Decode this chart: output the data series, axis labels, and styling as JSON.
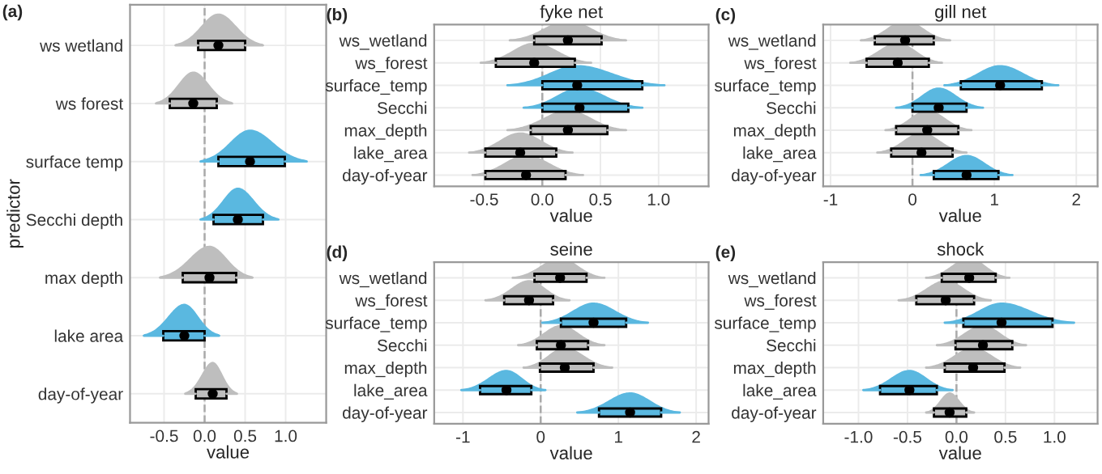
{
  "chart_data": [
    {
      "type": "box",
      "orientation": "horizontal",
      "annotations": [
        "(a)"
      ],
      "xlabel": "value",
      "ylabel": "predictor",
      "grid": true,
      "categories": [
        "ws wetland",
        "ws forest",
        "surface temp",
        "Secchi depth",
        "max depth",
        "lake area",
        "day-of-year"
      ],
      "colors": [
        "#bebebe",
        "#bebebe",
        "#5ab8e0",
        "#5ab8e0",
        "#bebebe",
        "#5ab8e0",
        "#bebebe"
      ],
      "boxes": [
        {
          "low": -0.36,
          "q1": -0.08,
          "median": 0.17,
          "q3": 0.5,
          "high": 0.72
        },
        {
          "low": -0.6,
          "q1": -0.43,
          "median": -0.14,
          "q3": 0.15,
          "high": 0.34
        },
        {
          "low": -0.05,
          "q1": 0.17,
          "median": 0.56,
          "q3": 0.99,
          "high": 1.26
        },
        {
          "low": -0.05,
          "q1": 0.11,
          "median": 0.41,
          "q3": 0.72,
          "high": 0.91
        },
        {
          "low": -0.55,
          "q1": -0.27,
          "median": 0.06,
          "q3": 0.39,
          "high": 0.59
        },
        {
          "low": -0.75,
          "q1": -0.51,
          "median": -0.25,
          "q3": 0.0,
          "high": 0.18
        },
        {
          "low": -0.24,
          "q1": -0.11,
          "median": 0.1,
          "q3": 0.27,
          "high": 0.4
        }
      ],
      "xlim": [
        -0.92,
        1.5
      ],
      "xticks": [
        {
          "value": -0.5,
          "label": "-0.5"
        },
        {
          "value": 0,
          "label": "0.0"
        },
        {
          "value": 0.5,
          "label": "0.5"
        },
        {
          "value": 1,
          "label": "1.0"
        }
      ],
      "ref_lines": [
        {
          "axis": "x",
          "value": 0,
          "line_style": "dashed",
          "color": "#aaaaaa"
        }
      ]
    },
    {
      "type": "box",
      "orientation": "horizontal",
      "title": "fyke net",
      "annotations": [
        "(b)"
      ],
      "xlabel": "value",
      "grid": true,
      "categories": [
        "ws_wetland",
        "ws_forest",
        "surface_temp",
        "Secchi",
        "max_depth",
        "lake_area",
        "day-of-year"
      ],
      "colors": [
        "#bebebe",
        "#bebebe",
        "#5ab8e0",
        "#5ab8e0",
        "#bebebe",
        "#bebebe",
        "#bebebe"
      ],
      "boxes": [
        {
          "low": -0.28,
          "q1": -0.07,
          "median": 0.22,
          "q3": 0.51,
          "high": 0.72
        },
        {
          "low": -0.53,
          "q1": -0.4,
          "median": -0.07,
          "q3": 0.28,
          "high": 0.42
        },
        {
          "low": -0.3,
          "q1": 0.0,
          "median": 0.3,
          "q3": 0.86,
          "high": 1.05
        },
        {
          "low": -0.16,
          "q1": 0.0,
          "median": 0.32,
          "q3": 0.74,
          "high": 0.86
        },
        {
          "low": -0.3,
          "q1": -0.1,
          "median": 0.22,
          "q3": 0.56,
          "high": 0.72
        },
        {
          "low": -0.63,
          "q1": -0.49,
          "median": -0.19,
          "q3": 0.12,
          "high": 0.26
        },
        {
          "low": -0.6,
          "q1": -0.49,
          "median": -0.14,
          "q3": 0.2,
          "high": 0.35
        }
      ],
      "xlim": [
        -0.93,
        1.43
      ],
      "xticks": [
        {
          "value": -0.5,
          "label": "-0.5"
        },
        {
          "value": 0,
          "label": "0.0"
        },
        {
          "value": 0.5,
          "label": "0.5"
        },
        {
          "value": 1,
          "label": "1.0"
        }
      ],
      "ref_lines": [
        {
          "axis": "x",
          "value": 0,
          "line_style": "dashed",
          "color": "#aaaaaa"
        }
      ]
    },
    {
      "type": "box",
      "orientation": "horizontal",
      "title": "gill net",
      "annotations": [
        "(c)"
      ],
      "xlabel": "value",
      "grid": true,
      "categories": [
        "ws_wetland",
        "ws_forest",
        "surface_temp",
        "Secchi",
        "max_depth",
        "lake_area",
        "day-of-year"
      ],
      "colors": [
        "#bebebe",
        "#bebebe",
        "#5ab8e0",
        "#5ab8e0",
        "#bebebe",
        "#bebebe",
        "#5ab8e0"
      ],
      "boxes": [
        {
          "low": -0.63,
          "q1": -0.46,
          "median": -0.09,
          "q3": 0.26,
          "high": 0.46
        },
        {
          "low": -0.76,
          "q1": -0.56,
          "median": -0.18,
          "q3": 0.2,
          "high": 0.36
        },
        {
          "low": 0.39,
          "q1": 0.59,
          "median": 1.07,
          "q3": 1.58,
          "high": 1.78
        },
        {
          "low": -0.2,
          "q1": 0.0,
          "median": 0.32,
          "q3": 0.66,
          "high": 0.86
        },
        {
          "low": -0.33,
          "q1": -0.2,
          "median": 0.18,
          "q3": 0.56,
          "high": 0.72
        },
        {
          "low": -0.43,
          "q1": -0.26,
          "median": 0.11,
          "q3": 0.49,
          "high": 0.66
        },
        {
          "low": 0.1,
          "q1": 0.26,
          "median": 0.66,
          "q3": 1.05,
          "high": 1.22
        }
      ],
      "xlim": [
        -1.09,
        2.26
      ],
      "xticks": [
        -1,
        0,
        1,
        2
      ],
      "ref_lines": [
        {
          "axis": "x",
          "value": 0,
          "line_style": "dashed",
          "color": "#aaaaaa"
        }
      ]
    },
    {
      "type": "box",
      "orientation": "horizontal",
      "title": "seine",
      "annotations": [
        "(d)"
      ],
      "xlabel": "value",
      "grid": true,
      "categories": [
        "ws_wetland",
        "ws_forest",
        "surface_temp",
        "Secchi",
        "max_depth",
        "lake_area",
        "day-of-year"
      ],
      "colors": [
        "#bebebe",
        "#bebebe",
        "#5ab8e0",
        "#bebebe",
        "#bebebe",
        "#5ab8e0",
        "#5ab8e0"
      ],
      "boxes": [
        {
          "low": -0.36,
          "q1": -0.08,
          "median": 0.25,
          "q3": 0.59,
          "high": 0.82
        },
        {
          "low": -0.71,
          "q1": -0.47,
          "median": -0.15,
          "q3": 0.16,
          "high": 0.37
        },
        {
          "low": 0.02,
          "q1": 0.26,
          "median": 0.68,
          "q3": 1.1,
          "high": 1.38
        },
        {
          "low": -0.29,
          "q1": -0.05,
          "median": 0.26,
          "q3": 0.61,
          "high": 0.82
        },
        {
          "low": -0.22,
          "q1": -0.01,
          "median": 0.31,
          "q3": 0.68,
          "high": 0.92
        },
        {
          "low": -1.02,
          "q1": -0.78,
          "median": -0.44,
          "q3": -0.12,
          "high": 0.06
        },
        {
          "low": 0.47,
          "q1": 0.75,
          "median": 1.15,
          "q3": 1.55,
          "high": 1.79
        }
      ],
      "xlim": [
        -1.37,
        2.16
      ],
      "xticks": [
        -1,
        0,
        1,
        2
      ],
      "ref_lines": [
        {
          "axis": "x",
          "value": 0,
          "line_style": "dashed",
          "color": "#aaaaaa"
        }
      ]
    },
    {
      "type": "box",
      "orientation": "horizontal",
      "title": "shock",
      "annotations": [
        "(e)"
      ],
      "xlabel": "value",
      "grid": true,
      "categories": [
        "ws_wetland",
        "ws_forest",
        "surface_temp",
        "Secchi",
        "max_depth",
        "lake_area",
        "day-of-year"
      ],
      "colors": [
        "#bebebe",
        "#bebebe",
        "#5ab8e0",
        "#bebebe",
        "#bebebe",
        "#5ab8e0",
        "#bebebe"
      ],
      "boxes": [
        {
          "low": -0.31,
          "q1": -0.15,
          "median": 0.13,
          "q3": 0.4,
          "high": 0.54
        },
        {
          "low": -0.59,
          "q1": -0.41,
          "median": -0.11,
          "q3": 0.18,
          "high": 0.35
        },
        {
          "low": -0.12,
          "q1": 0.07,
          "median": 0.46,
          "q3": 0.98,
          "high": 1.2
        },
        {
          "low": -0.2,
          "q1": -0.01,
          "median": 0.27,
          "q3": 0.57,
          "high": 0.71
        },
        {
          "low": -0.31,
          "q1": -0.12,
          "median": 0.17,
          "q3": 0.49,
          "high": 0.65
        },
        {
          "low": -0.95,
          "q1": -0.78,
          "median": -0.48,
          "q3": -0.2,
          "high": -0.04
        },
        {
          "low": -0.31,
          "q1": -0.23,
          "median": -0.07,
          "q3": 0.1,
          "high": 0.18
        }
      ],
      "xlim": [
        -1.36,
        1.44
      ],
      "xticks": [
        {
          "value": -1,
          "label": "-1.0"
        },
        {
          "value": -0.5,
          "label": "-0.5"
        },
        {
          "value": 0,
          "label": "0.0"
        },
        {
          "value": 0.5,
          "label": "0.5"
        },
        {
          "value": 1,
          "label": "1.0"
        }
      ],
      "ref_lines": [
        {
          "axis": "x",
          "value": 0,
          "line_style": "dashed",
          "color": "#aaaaaa"
        }
      ]
    }
  ]
}
